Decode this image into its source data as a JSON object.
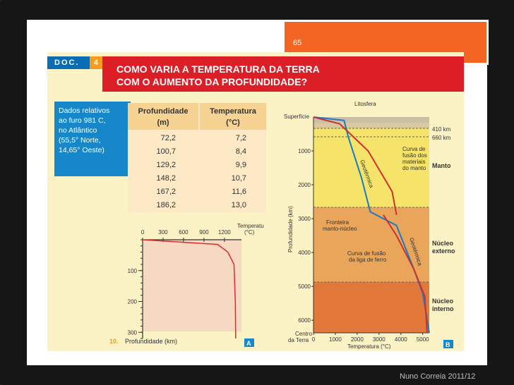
{
  "slide": {
    "number": "65",
    "footer": "Nuno Correia 2011/12"
  },
  "doc": {
    "tag": "DOC.",
    "number": "4",
    "title_line1": "COMO VARIA A TEMPERATURA DA TERRA",
    "title_line2": "COM O AUMENTO DA PROFUNDIDADE?",
    "data_lines": [
      "Dados relativos",
      "ao furo 981 C,",
      "no Atlântico",
      "(55,5° Norte,",
      "14,65° Oeste)"
    ],
    "table": {
      "col1_header_line1": "Profundidade",
      "col1_header_line2": "(m)",
      "col2_header_line1": "Temperatura",
      "col2_header_line2": "(°C)",
      "rows": [
        {
          "depth": "72,2",
          "temp": "7,2"
        },
        {
          "depth": "100,7",
          "temp": "8,4"
        },
        {
          "depth": "129,2",
          "temp": "9,9"
        },
        {
          "depth": "148,2",
          "temp": "10,7"
        },
        {
          "depth": "167,2",
          "temp": "11,6"
        },
        {
          "depth": "186,2",
          "temp": "13,0"
        }
      ]
    },
    "figure_number": "10."
  },
  "chart_data": [
    {
      "type": "line",
      "badge": "A",
      "top_axis_ticks": [
        "0",
        "300",
        "600",
        "900",
        "1200"
      ],
      "top_axis_label_line1": "Temperatura",
      "top_axis_label_line2": "(°C)",
      "left_axis_ticks": [
        "100",
        "200",
        "300"
      ],
      "left_axis_label": "Profundidade (km)",
      "xlim": [
        0,
        1450
      ],
      "ylim": [
        0,
        320
      ],
      "series": [
        {
          "x": [
            0,
            1100,
            1250,
            1340,
            1360,
            1365
          ],
          "y": [
            0,
            15,
            40,
            80,
            200,
            320
          ]
        }
      ],
      "colors": {
        "curve": "#e02b2b",
        "plot_area": "#f6d9c2"
      }
    },
    {
      "type": "line",
      "badge": "B",
      "top_label": "Litosfera",
      "surface_label": "Superfície",
      "x_ticks": [
        "0",
        "1000",
        "2000",
        "3000",
        "4000",
        "5000"
      ],
      "xlabel": "Temperatura (°C)",
      "y_ticks": [
        "1000",
        "2000",
        "3000",
        "4000",
        "5000",
        "6000"
      ],
      "ylabel": "Profundidade (km)",
      "center_label_line1": "Centro",
      "center_label_line2": "da Terra",
      "xlim": [
        0,
        5300
      ],
      "ylim": [
        0,
        6371
      ],
      "depth_marks": [
        "410 km",
        "660 km"
      ],
      "layers": [
        {
          "name": "Manto",
          "color": "#f5e36a"
        },
        {
          "name_line1": "Núcleo",
          "name_line2": "externo",
          "color": "#e9a65a"
        },
        {
          "name_line1": "Núcleo",
          "name_line2": "interno",
          "color": "#e2783a"
        }
      ],
      "annotations": {
        "geotermica": "Geotérmica",
        "fusao_manto_line1": "Curva de",
        "fusao_manto_line2": "fusão dos",
        "fusao_manto_line3": "materiais",
        "fusao_manto_line4": "do manto",
        "fronteira_line1": "Fronteira",
        "fronteira_line2": "manto-núcleo",
        "fusao_ferro_line1": "Curva de fusão",
        "fusao_ferro_line2": "da liga de ferro"
      },
      "series": [
        {
          "name": "Geotérmica",
          "x": [
            0,
            1400,
            1600,
            2200,
            2600,
            3800,
            4600,
            5000,
            5300
          ],
          "y": [
            0,
            100,
            600,
            1800,
            2800,
            3200,
            4500,
            5200,
            6371
          ]
        },
        {
          "name": "Curva de fusão dos materiais do manto",
          "x": [
            0,
            1200,
            2500,
            3600,
            3800
          ],
          "y": [
            0,
            200,
            1000,
            2200,
            2890
          ]
        },
        {
          "name": "Curva de fusão da liga de ferro",
          "x": [
            3200,
            3800,
            4600,
            5100,
            5200
          ],
          "y": [
            2890,
            3500,
            4500,
            5300,
            6371
          ]
        }
      ],
      "colors": {
        "geotermica": "#1a7ac4",
        "fusao": "#c8342e"
      }
    }
  ]
}
